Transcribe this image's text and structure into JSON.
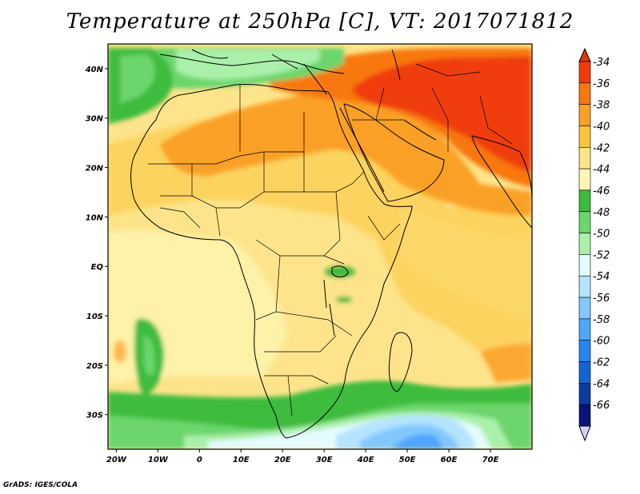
{
  "title": "Temperature at 250hPa [C], VT: 2017071812",
  "footer": "GrADS: IGES/COLA",
  "map": {
    "lon_range": [
      -22,
      80
    ],
    "lat_range": [
      -37,
      45
    ],
    "lat_ticks": [
      {
        "value": 40,
        "label": "40N"
      },
      {
        "value": 30,
        "label": "30N"
      },
      {
        "value": 20,
        "label": "20N"
      },
      {
        "value": 10,
        "label": "10N"
      },
      {
        "value": 0,
        "label": "EQ"
      },
      {
        "value": -10,
        "label": "10S"
      },
      {
        "value": -20,
        "label": "20S"
      },
      {
        "value": -30,
        "label": "30S"
      }
    ],
    "lon_ticks": [
      {
        "value": -20,
        "label": "20W"
      },
      {
        "value": -10,
        "label": "10W"
      },
      {
        "value": 0,
        "label": "0"
      },
      {
        "value": 10,
        "label": "10E"
      },
      {
        "value": 20,
        "label": "20E"
      },
      {
        "value": 30,
        "label": "30E"
      },
      {
        "value": 40,
        "label": "40E"
      },
      {
        "value": 50,
        "label": "50E"
      },
      {
        "value": 60,
        "label": "60E"
      },
      {
        "value": 70,
        "label": "70E"
      }
    ]
  },
  "colorbar": {
    "levels": [
      {
        "label": "-34",
        "color": "#f03c0a"
      },
      {
        "label": "-36",
        "color": "#f87810"
      },
      {
        "label": "-38",
        "color": "#faa028"
      },
      {
        "label": "-40",
        "color": "#fbc43c"
      },
      {
        "label": "-42",
        "color": "#fde48a"
      },
      {
        "label": "-44",
        "color": "#fef6b2"
      },
      {
        "label": "-46",
        "color": "#3cbc3c"
      },
      {
        "label": "-48",
        "color": "#6cd66c"
      },
      {
        "label": "-50",
        "color": "#aaf0aa"
      },
      {
        "label": "-52",
        "color": "#e4fcff"
      },
      {
        "label": "-54",
        "color": "#b4e4ff"
      },
      {
        "label": "-56",
        "color": "#82c8ff"
      },
      {
        "label": "-58",
        "color": "#50a6fa"
      },
      {
        "label": "-60",
        "color": "#2a84f0"
      },
      {
        "label": "-62",
        "color": "#1464d2"
      },
      {
        "label": "-64",
        "color": "#0a3ca0"
      },
      {
        "label": "-66",
        "color": "#0a1478"
      }
    ],
    "top_triangle_color": "#e6320a",
    "bottom_triangle_color": "#d2d2fa"
  }
}
